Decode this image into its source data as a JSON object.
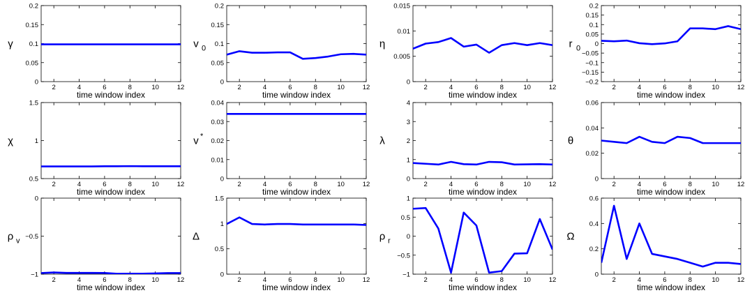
{
  "figure": {
    "xlabel": "time window index",
    "x_ticks": [
      2,
      4,
      6,
      8,
      10,
      12
    ],
    "line_color": "#0000ff",
    "background": "#ffffff"
  },
  "chart_data": [
    {
      "type": "line",
      "ylabel": "γ",
      "ylabel_sub": "",
      "ylabel_sup": "",
      "xlim": [
        1,
        12
      ],
      "ylim": [
        0,
        0.2
      ],
      "yticks": [
        "0",
        "0.05",
        "0.1",
        "0.15",
        "0.2"
      ],
      "ytick_values": [
        0,
        0.05,
        0.1,
        0.15,
        0.2
      ],
      "x": [
        1,
        2,
        3,
        4,
        5,
        6,
        7,
        8,
        9,
        10,
        11,
        12
      ],
      "y": [
        0.098,
        0.098,
        0.098,
        0.098,
        0.098,
        0.098,
        0.098,
        0.098,
        0.098,
        0.098,
        0.098,
        0.098
      ]
    },
    {
      "type": "line",
      "ylabel": "v",
      "ylabel_sub": "0",
      "ylabel_sup": "",
      "xlim": [
        1,
        12
      ],
      "ylim": [
        0,
        0.2
      ],
      "yticks": [
        "0",
        "0.05",
        "0.1",
        "0.15",
        "0.2"
      ],
      "ytick_values": [
        0,
        0.05,
        0.1,
        0.15,
        0.2
      ],
      "x": [
        1,
        2,
        3,
        4,
        5,
        6,
        7,
        8,
        9,
        10,
        11,
        12
      ],
      "y": [
        0.071,
        0.08,
        0.076,
        0.076,
        0.077,
        0.077,
        0.06,
        0.062,
        0.066,
        0.072,
        0.073,
        0.071
      ]
    },
    {
      "type": "line",
      "ylabel": "η",
      "ylabel_sub": "",
      "ylabel_sup": "",
      "xlim": [
        1,
        12
      ],
      "ylim": [
        0,
        0.015
      ],
      "yticks": [
        "0",
        "0.005",
        "0.01",
        "0.015"
      ],
      "ytick_values": [
        0,
        0.005,
        0.01,
        0.015
      ],
      "x": [
        1,
        2,
        3,
        4,
        5,
        6,
        7,
        8,
        9,
        10,
        11,
        12
      ],
      "y": [
        0.0065,
        0.0075,
        0.0078,
        0.0086,
        0.0069,
        0.0073,
        0.0057,
        0.0072,
        0.0076,
        0.0072,
        0.0076,
        0.0072
      ]
    },
    {
      "type": "line",
      "ylabel": "r",
      "ylabel_sub": "0",
      "ylabel_sup": "",
      "xlim": [
        1,
        12
      ],
      "ylim": [
        -0.2,
        0.2
      ],
      "yticks": [
        "−0.2",
        "−0.15",
        "−0.1",
        "−0.05",
        "0",
        "0.05",
        "0.1",
        "0.15",
        "0.2"
      ],
      "ytick_values": [
        -0.2,
        -0.15,
        -0.1,
        -0.05,
        0,
        0.05,
        0.1,
        0.15,
        0.2
      ],
      "x": [
        1,
        2,
        3,
        4,
        5,
        6,
        7,
        8,
        9,
        10,
        11,
        12
      ],
      "y": [
        0.015,
        0.012,
        0.016,
        0.002,
        -0.003,
        0.001,
        0.012,
        0.08,
        0.08,
        0.076,
        0.092,
        0.076
      ]
    },
    {
      "type": "line",
      "ylabel": "χ",
      "ylabel_sub": "",
      "ylabel_sup": "",
      "xlim": [
        1,
        12
      ],
      "ylim": [
        0.5,
        1.5
      ],
      "yticks": [
        "0.5",
        "1",
        "1.5"
      ],
      "ytick_values": [
        0.5,
        1,
        1.5
      ],
      "x": [
        1,
        2,
        3,
        4,
        5,
        6,
        7,
        8,
        9,
        10,
        11,
        12
      ],
      "y": [
        0.66,
        0.66,
        0.66,
        0.66,
        0.66,
        0.662,
        0.662,
        0.664,
        0.662,
        0.662,
        0.662,
        0.662
      ]
    },
    {
      "type": "line",
      "ylabel": "v",
      "ylabel_sub": "",
      "ylabel_sup": "*",
      "xlim": [
        1,
        12
      ],
      "ylim": [
        0,
        0.04
      ],
      "yticks": [
        "0",
        "0.01",
        "0.02",
        "0.03",
        "0.04"
      ],
      "ytick_values": [
        0,
        0.01,
        0.02,
        0.03,
        0.04
      ],
      "x": [
        1,
        2,
        3,
        4,
        5,
        6,
        7,
        8,
        9,
        10,
        11,
        12
      ],
      "y": [
        0.034,
        0.034,
        0.034,
        0.034,
        0.034,
        0.034,
        0.034,
        0.034,
        0.034,
        0.034,
        0.034,
        0.034
      ]
    },
    {
      "type": "line",
      "ylabel": "λ",
      "ylabel_sub": "",
      "ylabel_sup": "",
      "xlim": [
        1,
        12
      ],
      "ylim": [
        0,
        4
      ],
      "yticks": [
        "0",
        "1",
        "2",
        "3",
        "4"
      ],
      "ytick_values": [
        0,
        1,
        2,
        3,
        4
      ],
      "x": [
        1,
        2,
        3,
        4,
        5,
        6,
        7,
        8,
        9,
        10,
        11,
        12
      ],
      "y": [
        0.82,
        0.78,
        0.74,
        0.88,
        0.76,
        0.74,
        0.88,
        0.86,
        0.74,
        0.75,
        0.76,
        0.74
      ]
    },
    {
      "type": "line",
      "ylabel": "θ",
      "ylabel_sub": "",
      "ylabel_sup": "",
      "xlim": [
        1,
        12
      ],
      "ylim": [
        0,
        0.06
      ],
      "yticks": [
        "0",
        "0.02",
        "0.04",
        "0.06"
      ],
      "ytick_values": [
        0,
        0.02,
        0.04,
        0.06
      ],
      "x": [
        1,
        2,
        3,
        4,
        5,
        6,
        7,
        8,
        9,
        10,
        11,
        12
      ],
      "y": [
        0.03,
        0.029,
        0.028,
        0.033,
        0.029,
        0.028,
        0.033,
        0.032,
        0.028,
        0.028,
        0.028,
        0.028
      ]
    },
    {
      "type": "line",
      "ylabel": "ρ",
      "ylabel_sub": "v",
      "ylabel_sup": "",
      "xlim": [
        1,
        12
      ],
      "ylim": [
        -1,
        0
      ],
      "yticks": [
        "−1",
        "−0.5",
        "0"
      ],
      "ytick_values": [
        -1,
        -0.5,
        0
      ],
      "x": [
        1,
        2,
        3,
        4,
        5,
        6,
        7,
        8,
        9,
        10,
        11,
        12
      ],
      "y": [
        -0.985,
        -0.978,
        -0.983,
        -0.983,
        -0.983,
        -0.984,
        -0.995,
        -0.994,
        -0.993,
        -0.99,
        -0.985,
        -0.985
      ]
    },
    {
      "type": "line",
      "ylabel": "Δ",
      "ylabel_sub": "",
      "ylabel_sup": "",
      "xlim": [
        1,
        12
      ],
      "ylim": [
        0,
        1.5
      ],
      "yticks": [
        "0",
        "0.5",
        "1",
        "1.5"
      ],
      "ytick_values": [
        0,
        0.5,
        1,
        1.5
      ],
      "x": [
        1,
        2,
        3,
        4,
        5,
        6,
        7,
        8,
        9,
        10,
        11,
        12
      ],
      "y": [
        0.99,
        1.12,
        0.99,
        0.98,
        0.99,
        0.99,
        0.98,
        0.98,
        0.98,
        0.98,
        0.98,
        0.97
      ]
    },
    {
      "type": "line",
      "ylabel": "ρ",
      "ylabel_sub": "r",
      "ylabel_sup": "",
      "xlim": [
        1,
        12
      ],
      "ylim": [
        -1,
        1
      ],
      "yticks": [
        "−1",
        "−0.5",
        "0",
        "0.5",
        "1"
      ],
      "ytick_values": [
        -1,
        -0.5,
        0,
        0.5,
        1
      ],
      "x": [
        1,
        2,
        3,
        4,
        5,
        6,
        7,
        8,
        9,
        10,
        11,
        12
      ],
      "y": [
        0.72,
        0.74,
        0.2,
        -0.96,
        0.62,
        0.28,
        -0.96,
        -0.92,
        -0.46,
        -0.45,
        0.45,
        -0.35
      ]
    },
    {
      "type": "line",
      "ylabel": "Ω",
      "ylabel_sub": "",
      "ylabel_sup": "",
      "xlim": [
        1,
        12
      ],
      "ylim": [
        0,
        0.6
      ],
      "yticks": [
        "0",
        "0.2",
        "0.4",
        "0.6"
      ],
      "ytick_values": [
        0,
        0.2,
        0.4,
        0.6
      ],
      "x": [
        1,
        2,
        3,
        4,
        5,
        6,
        7,
        8,
        9,
        10,
        11,
        12
      ],
      "y": [
        0.09,
        0.54,
        0.12,
        0.4,
        0.16,
        0.14,
        0.12,
        0.09,
        0.06,
        0.09,
        0.09,
        0.08
      ]
    }
  ]
}
